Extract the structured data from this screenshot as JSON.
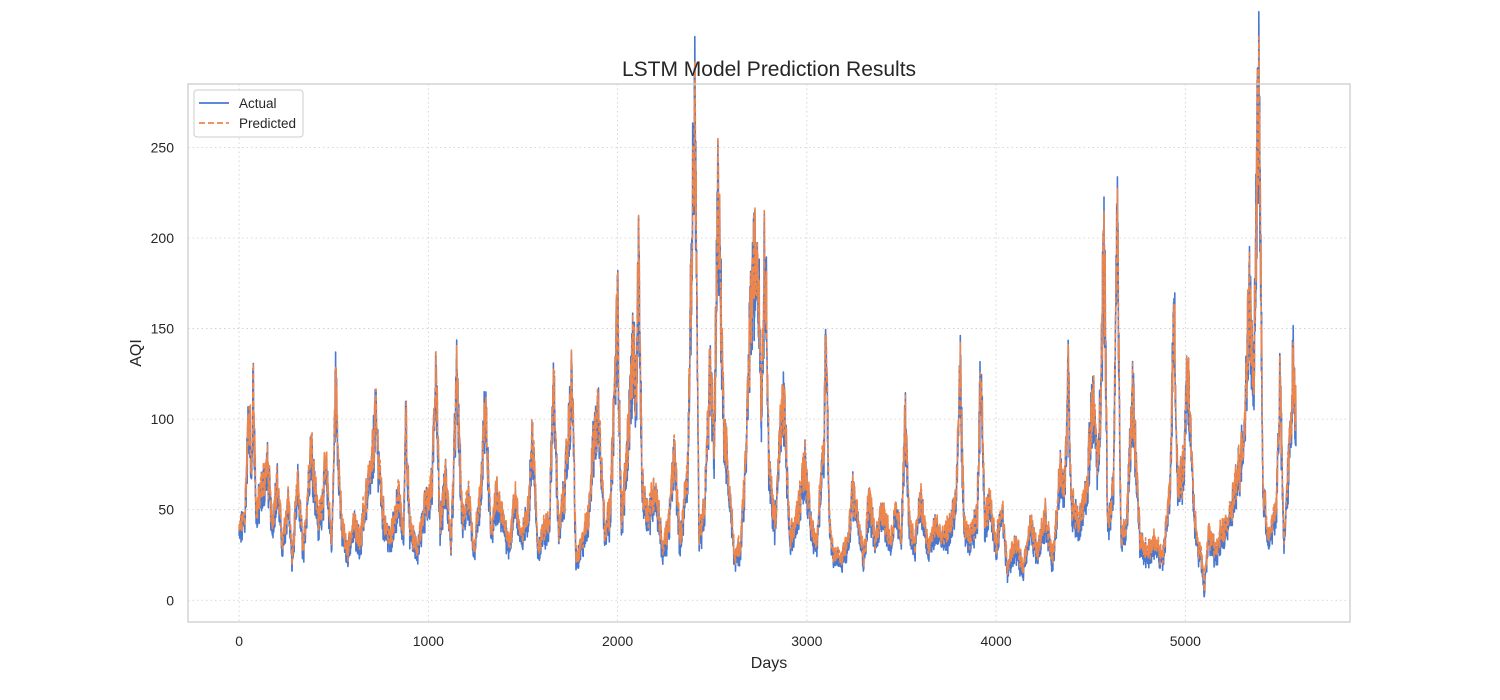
{
  "chart_data": {
    "type": "line",
    "title": "LSTM Model Prediction Results",
    "xlabel": "Days",
    "ylabel": "AQI",
    "xlim": [
      -270,
      5870
    ],
    "ylim": [
      -12,
      285
    ],
    "xticks": [
      0,
      1000,
      2000,
      3000,
      4000,
      5000
    ],
    "yticks": [
      0,
      50,
      100,
      150,
      200,
      250
    ],
    "grid": true,
    "legend_position": "top-left",
    "n_points": 5585,
    "series": [
      {
        "name": "Actual",
        "color": "#4878d0",
        "style": "solid"
      },
      {
        "name": "Predicted",
        "color": "#ee854a",
        "style": "dashed"
      }
    ],
    "anchors": [
      [
        0,
        35
      ],
      [
        30,
        45
      ],
      [
        55,
        110
      ],
      [
        65,
        60
      ],
      [
        75,
        118
      ],
      [
        90,
        45
      ],
      [
        120,
        60
      ],
      [
        150,
        72
      ],
      [
        175,
        40
      ],
      [
        200,
        65
      ],
      [
        230,
        28
      ],
      [
        260,
        55
      ],
      [
        280,
        20
      ],
      [
        310,
        62
      ],
      [
        340,
        25
      ],
      [
        380,
        85
      ],
      [
        420,
        40
      ],
      [
        460,
        70
      ],
      [
        490,
        30
      ],
      [
        510,
        118
      ],
      [
        540,
        40
      ],
      [
        570,
        25
      ],
      [
        610,
        40
      ],
      [
        640,
        30
      ],
      [
        670,
        55
      ],
      [
        700,
        70
      ],
      [
        720,
        100
      ],
      [
        760,
        45
      ],
      [
        800,
        30
      ],
      [
        840,
        55
      ],
      [
        870,
        35
      ],
      [
        880,
        107
      ],
      [
        900,
        40
      ],
      [
        940,
        25
      ],
      [
        980,
        50
      ],
      [
        1020,
        60
      ],
      [
        1040,
        136
      ],
      [
        1060,
        40
      ],
      [
        1090,
        65
      ],
      [
        1120,
        30
      ],
      [
        1150,
        120
      ],
      [
        1180,
        40
      ],
      [
        1210,
        55
      ],
      [
        1240,
        25
      ],
      [
        1280,
        60
      ],
      [
        1300,
        106
      ],
      [
        1330,
        35
      ],
      [
        1360,
        55
      ],
      [
        1400,
        40
      ],
      [
        1430,
        30
      ],
      [
        1460,
        55
      ],
      [
        1490,
        30
      ],
      [
        1530,
        50
      ],
      [
        1550,
        90
      ],
      [
        1580,
        25
      ],
      [
        1600,
        35
      ],
      [
        1640,
        40
      ],
      [
        1660,
        120
      ],
      [
        1690,
        35
      ],
      [
        1720,
        60
      ],
      [
        1760,
        120
      ],
      [
        1780,
        20
      ],
      [
        1800,
        25
      ],
      [
        1840,
        40
      ],
      [
        1870,
        80
      ],
      [
        1900,
        105
      ],
      [
        1930,
        40
      ],
      [
        1960,
        45
      ],
      [
        2000,
        160
      ],
      [
        2020,
        40
      ],
      [
        2050,
        80
      ],
      [
        2080,
        135
      ],
      [
        2100,
        110
      ],
      [
        2110,
        190
      ],
      [
        2130,
        60
      ],
      [
        2160,
        45
      ],
      [
        2200,
        60
      ],
      [
        2240,
        25
      ],
      [
        2270,
        40
      ],
      [
        2300,
        80
      ],
      [
        2330,
        30
      ],
      [
        2370,
        70
      ],
      [
        2400,
        235
      ],
      [
        2410,
        268
      ],
      [
        2430,
        30
      ],
      [
        2460,
        50
      ],
      [
        2490,
        130
      ],
      [
        2510,
        80
      ],
      [
        2530,
        230
      ],
      [
        2560,
        100
      ],
      [
        2590,
        60
      ],
      [
        2620,
        20
      ],
      [
        2650,
        30
      ],
      [
        2680,
        80
      ],
      [
        2700,
        150
      ],
      [
        2720,
        180
      ],
      [
        2740,
        195
      ],
      [
        2760,
        110
      ],
      [
        2780,
        200
      ],
      [
        2800,
        70
      ],
      [
        2830,
        40
      ],
      [
        2860,
        90
      ],
      [
        2880,
        108
      ],
      [
        2910,
        30
      ],
      [
        2950,
        45
      ],
      [
        2990,
        75
      ],
      [
        3020,
        40
      ],
      [
        3050,
        30
      ],
      [
        3090,
        80
      ],
      [
        3100,
        152
      ],
      [
        3120,
        40
      ],
      [
        3140,
        25
      ],
      [
        3180,
        20
      ],
      [
        3220,
        30
      ],
      [
        3240,
        60
      ],
      [
        3280,
        40
      ],
      [
        3300,
        20
      ],
      [
        3330,
        55
      ],
      [
        3360,
        30
      ],
      [
        3400,
        50
      ],
      [
        3440,
        30
      ],
      [
        3470,
        45
      ],
      [
        3500,
        35
      ],
      [
        3520,
        100
      ],
      [
        3540,
        40
      ],
      [
        3570,
        30
      ],
      [
        3600,
        55
      ],
      [
        3640,
        25
      ],
      [
        3680,
        40
      ],
      [
        3720,
        30
      ],
      [
        3760,
        40
      ],
      [
        3790,
        55
      ],
      [
        3810,
        128
      ],
      [
        3830,
        40
      ],
      [
        3860,
        30
      ],
      [
        3900,
        45
      ],
      [
        3920,
        130
      ],
      [
        3940,
        40
      ],
      [
        3970,
        55
      ],
      [
        4000,
        25
      ],
      [
        4030,
        50
      ],
      [
        4060,
        15
      ],
      [
        4100,
        30
      ],
      [
        4140,
        15
      ],
      [
        4180,
        40
      ],
      [
        4220,
        25
      ],
      [
        4260,
        45
      ],
      [
        4300,
        20
      ],
      [
        4340,
        70
      ],
      [
        4360,
        55
      ],
      [
        4380,
        122
      ],
      [
        4400,
        50
      ],
      [
        4440,
        40
      ],
      [
        4480,
        60
      ],
      [
        4510,
        110
      ],
      [
        4540,
        70
      ],
      [
        4560,
        150
      ],
      [
        4570,
        210
      ],
      [
        4590,
        40
      ],
      [
        4620,
        60
      ],
      [
        4640,
        212
      ],
      [
        4660,
        30
      ],
      [
        4690,
        40
      ],
      [
        4720,
        115
      ],
      [
        4760,
        30
      ],
      [
        4800,
        25
      ],
      [
        4840,
        30
      ],
      [
        4880,
        20
      ],
      [
        4920,
        60
      ],
      [
        4940,
        165
      ],
      [
        4960,
        60
      ],
      [
        4990,
        70
      ],
      [
        5010,
        130
      ],
      [
        5040,
        60
      ],
      [
        5060,
        30
      ],
      [
        5090,
        20
      ],
      [
        5100,
        3
      ],
      [
        5120,
        35
      ],
      [
        5160,
        25
      ],
      [
        5200,
        35
      ],
      [
        5240,
        45
      ],
      [
        5280,
        70
      ],
      [
        5310,
        90
      ],
      [
        5340,
        170
      ],
      [
        5360,
        110
      ],
      [
        5380,
        250
      ],
      [
        5390,
        272
      ],
      [
        5410,
        60
      ],
      [
        5440,
        30
      ],
      [
        5480,
        50
      ],
      [
        5500,
        120
      ],
      [
        5520,
        30
      ],
      [
        5550,
        80
      ],
      [
        5570,
        130
      ],
      [
        5584,
        100
      ]
    ]
  }
}
